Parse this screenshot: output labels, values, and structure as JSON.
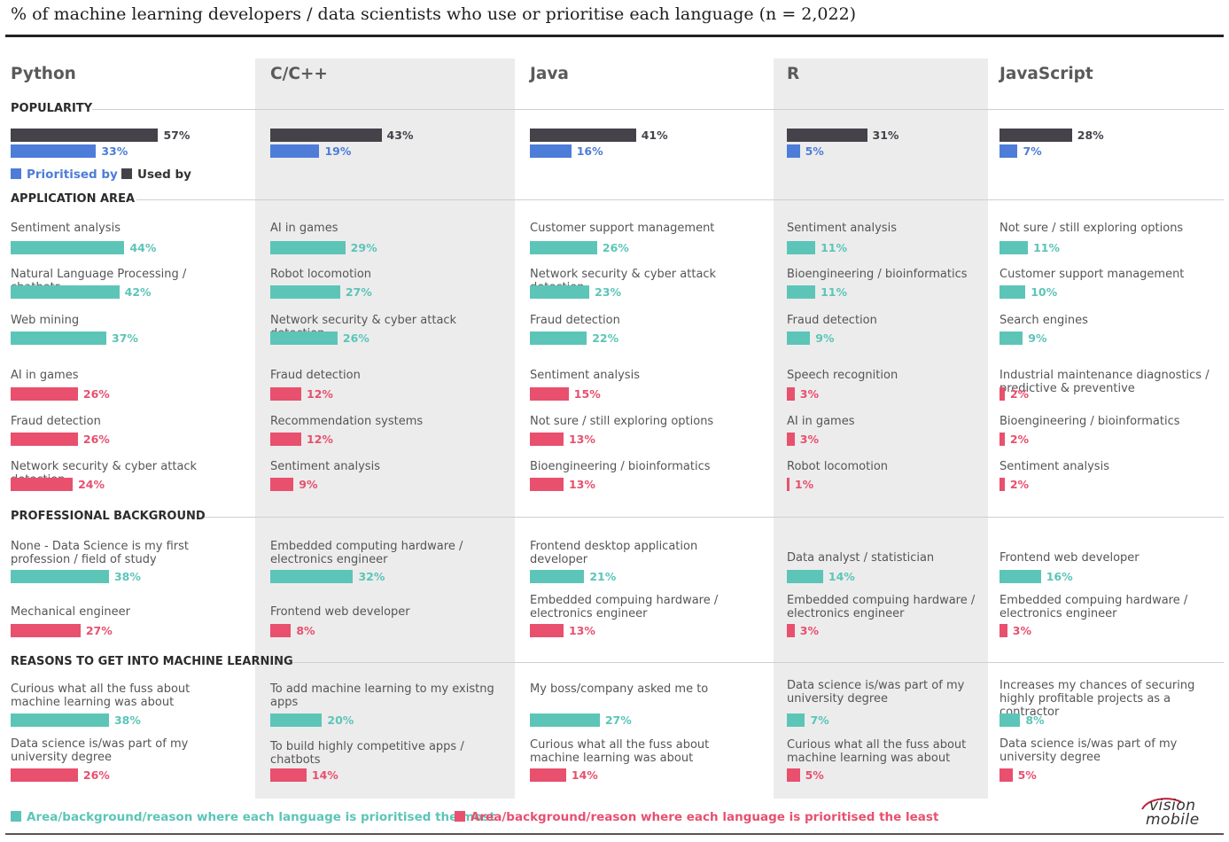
{
  "title": "% of machine learning developers / data scientists who use or prioritise each language (n = 2,022)",
  "sections": {
    "popularity": "POPULARITY",
    "application": "APPLICATION AREA",
    "background": "PROFESSIONAL BACKGROUND",
    "reasons": "REASONS TO GET INTO MACHINE LEARNING"
  },
  "popularity_legend": {
    "prioritised": "Prioritised by",
    "used": "Used by"
  },
  "footer_legend": {
    "most": "Area/background/reason where each language is prioritised the most",
    "least": "Area/background/reason where each language is prioritised the least"
  },
  "logo": {
    "line1": "vision",
    "line2": "mobile"
  },
  "colors": {
    "used": "#45424a",
    "prioritised": "#4d7dd8",
    "most": "#5cc5b8",
    "least": "#e8506e",
    "column_shade": "#ececec"
  },
  "chart_data": {
    "type": "bar",
    "title": "% of machine learning developers / data scientists who use or prioritise each language (n = 2,022)",
    "languages": [
      {
        "name": "Python",
        "used": 57,
        "prioritised": 33,
        "application": [
          {
            "label": "Sentiment analysis",
            "value": 44,
            "kind": "most"
          },
          {
            "label": "Natural Language Processing / chatbots",
            "value": 42,
            "kind": "most"
          },
          {
            "label": "Web mining",
            "value": 37,
            "kind": "most"
          },
          {
            "label": "AI in games",
            "value": 26,
            "kind": "least"
          },
          {
            "label": "Fraud detection",
            "value": 26,
            "kind": "least"
          },
          {
            "label": "Network security & cyber attack detection",
            "value": 24,
            "kind": "least"
          }
        ],
        "background": [
          {
            "label": "None - Data Science is my first profession / field of study",
            "value": 38,
            "kind": "most"
          },
          {
            "label": "Mechanical engineer",
            "value": 27,
            "kind": "least"
          }
        ],
        "reasons": [
          {
            "label": "Curious what all the fuss about machine learning was about",
            "value": 38,
            "kind": "most"
          },
          {
            "label": "Data science is/was part of my university degree",
            "value": 26,
            "kind": "least"
          }
        ]
      },
      {
        "name": "C/C++",
        "used": 43,
        "prioritised": 19,
        "application": [
          {
            "label": "AI in games",
            "value": 29,
            "kind": "most"
          },
          {
            "label": "Robot locomotion",
            "value": 27,
            "kind": "most"
          },
          {
            "label": "Network security & cyber attack detection",
            "value": 26,
            "kind": "most"
          },
          {
            "label": "Fraud detection",
            "value": 12,
            "kind": "least"
          },
          {
            "label": "Recommendation systems",
            "value": 12,
            "kind": "least"
          },
          {
            "label": "Sentiment analysis",
            "value": 9,
            "kind": "least"
          }
        ],
        "background": [
          {
            "label": "Embedded computing hardware / electronics engineer",
            "value": 32,
            "kind": "most"
          },
          {
            "label": "Frontend web developer",
            "value": 8,
            "kind": "least"
          }
        ],
        "reasons": [
          {
            "label": "To add machine learning to my existng apps",
            "value": 20,
            "kind": "most"
          },
          {
            "label": "To build highly competitive apps / chatbots",
            "value": 14,
            "kind": "least"
          }
        ]
      },
      {
        "name": "Java",
        "used": 41,
        "prioritised": 16,
        "application": [
          {
            "label": "Customer support management",
            "value": 26,
            "kind": "most"
          },
          {
            "label": "Network security & cyber attack detection",
            "value": 23,
            "kind": "most"
          },
          {
            "label": "Fraud detection",
            "value": 22,
            "kind": "most"
          },
          {
            "label": "Sentiment analysis",
            "value": 15,
            "kind": "least"
          },
          {
            "label": "Not sure / still exploring options",
            "value": 13,
            "kind": "least"
          },
          {
            "label": "Bioengineering / bioinformatics",
            "value": 13,
            "kind": "least"
          }
        ],
        "background": [
          {
            "label": "Frontend desktop application developer",
            "value": 21,
            "kind": "most"
          },
          {
            "label": "Embedded compuing hardware / electronics engineer",
            "value": 13,
            "kind": "least"
          }
        ],
        "reasons": [
          {
            "label": "My boss/company asked me to",
            "value": 27,
            "kind": "most"
          },
          {
            "label": "Curious what all the fuss about machine learning was about",
            "value": 14,
            "kind": "least"
          }
        ]
      },
      {
        "name": "R",
        "used": 31,
        "prioritised": 5,
        "application": [
          {
            "label": "Sentiment analysis",
            "value": 11,
            "kind": "most"
          },
          {
            "label": "Bioengineering / bioinformatics",
            "value": 11,
            "kind": "most"
          },
          {
            "label": "Fraud detection",
            "value": 9,
            "kind": "most"
          },
          {
            "label": "Speech recognition",
            "value": 3,
            "kind": "least"
          },
          {
            "label": "AI in games",
            "value": 3,
            "kind": "least"
          },
          {
            "label": "Robot locomotion",
            "value": 1,
            "kind": "least"
          }
        ],
        "background": [
          {
            "label": "Data analyst / statistician",
            "value": 14,
            "kind": "most"
          },
          {
            "label": "Embedded compuing hardware / electronics engineer",
            "value": 3,
            "kind": "least"
          }
        ],
        "reasons": [
          {
            "label": "Data science is/was part of my university degree",
            "value": 7,
            "kind": "most"
          },
          {
            "label": "Curious what all the fuss about machine learning was about",
            "value": 5,
            "kind": "least"
          }
        ]
      },
      {
        "name": "JavaScript",
        "used": 28,
        "prioritised": 7,
        "application": [
          {
            "label": "Not sure / still exploring options",
            "value": 11,
            "kind": "most"
          },
          {
            "label": "Customer support management",
            "value": 10,
            "kind": "most"
          },
          {
            "label": "Search engines",
            "value": 9,
            "kind": "most"
          },
          {
            "label": "Industrial maintenance diagnostics / predictive & preventive",
            "value": 2,
            "kind": "least"
          },
          {
            "label": "Bioengineering / bioinformatics",
            "value": 2,
            "kind": "least"
          },
          {
            "label": "Sentiment analysis",
            "value": 2,
            "kind": "least"
          }
        ],
        "background": [
          {
            "label": "Frontend web developer",
            "value": 16,
            "kind": "most"
          },
          {
            "label": "Embedded compuing hardware / electronics engineer",
            "value": 3,
            "kind": "least"
          }
        ],
        "reasons": [
          {
            "label": "Increases my chances of securing highly profitable projects as a contractor",
            "value": 8,
            "kind": "most"
          },
          {
            "label": "Data science is/was part of my university degree",
            "value": 5,
            "kind": "least"
          }
        ]
      }
    ]
  }
}
